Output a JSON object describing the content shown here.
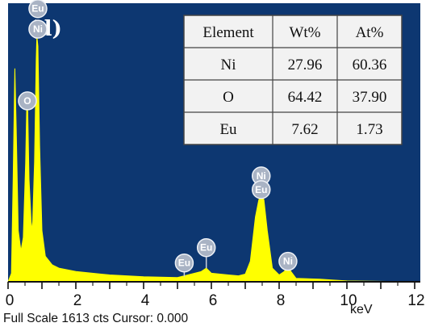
{
  "chart_data": {
    "type": "line",
    "panel_label": "(d)",
    "xlabel": "keV",
    "xlim": [
      0,
      12
    ],
    "x_ticks": [
      "0",
      "2",
      "4",
      "6",
      "8",
      "10",
      "12"
    ],
    "footer": "Full Scale 1613 cts Cursor: 0.000",
    "colors": {
      "plot_bg": "#0d3771",
      "spectrum": "#ffff00",
      "badge": "#a9b3c4",
      "table_bg": "#f2f2f2",
      "table_line": "#444444"
    },
    "spectrum_points": [
      [
        0.0,
        0
      ],
      [
        0.1,
        50
      ],
      [
        0.15,
        600
      ],
      [
        0.2,
        1250
      ],
      [
        0.24,
        900
      ],
      [
        0.3,
        300
      ],
      [
        0.38,
        180
      ],
      [
        0.45,
        260
      ],
      [
        0.52,
        700
      ],
      [
        0.55,
        1020
      ],
      [
        0.58,
        1000
      ],
      [
        0.62,
        600
      ],
      [
        0.68,
        350
      ],
      [
        0.72,
        300
      ],
      [
        0.78,
        700
      ],
      [
        0.83,
        1300
      ],
      [
        0.85,
        1440
      ],
      [
        0.88,
        1380
      ],
      [
        0.93,
        800
      ],
      [
        1.0,
        300
      ],
      [
        1.1,
        150
      ],
      [
        1.3,
        100
      ],
      [
        1.5,
        80
      ],
      [
        2.0,
        60
      ],
      [
        3.0,
        40
      ],
      [
        4.0,
        30
      ],
      [
        5.0,
        25
      ],
      [
        5.7,
        60
      ],
      [
        5.85,
        80
      ],
      [
        6.0,
        50
      ],
      [
        6.5,
        40
      ],
      [
        6.8,
        35
      ],
      [
        7.0,
        45
      ],
      [
        7.15,
        120
      ],
      [
        7.3,
        380
      ],
      [
        7.4,
        480
      ],
      [
        7.48,
        520
      ],
      [
        7.55,
        480
      ],
      [
        7.65,
        300
      ],
      [
        7.8,
        80
      ],
      [
        8.0,
        40
      ],
      [
        8.15,
        60
      ],
      [
        8.26,
        90
      ],
      [
        8.35,
        60
      ],
      [
        8.5,
        20
      ],
      [
        9.2,
        15
      ],
      [
        9.6,
        10
      ],
      [
        10.0,
        5
      ],
      [
        12.0,
        0
      ]
    ],
    "y_max": 1613,
    "peak_labels": [
      {
        "text": "Eu",
        "x": 0.88,
        "y": 1600,
        "pin_y": 1560
      },
      {
        "text": "Ni",
        "x": 0.88,
        "y": 1480,
        "pin_y": 1440
      },
      {
        "text": "O",
        "x": 0.57,
        "y": 1060,
        "pin_y": 1020
      },
      {
        "text": "Ni",
        "x": 7.47,
        "y": 620,
        "pin_y": 560
      },
      {
        "text": "Eu",
        "x": 7.47,
        "y": 540,
        "pin_y": 520
      },
      {
        "text": "Eu",
        "x": 5.85,
        "y": 200,
        "pin_y": 80
      },
      {
        "text": "Eu",
        "x": 5.2,
        "y": 110,
        "pin_y": 30
      },
      {
        "text": "Ni",
        "x": 8.26,
        "y": 120,
        "pin_y": 90
      }
    ],
    "table": {
      "headers": [
        "Element",
        "Wt%",
        "At%"
      ],
      "rows": [
        [
          "Ni",
          "27.96",
          "60.36"
        ],
        [
          "O",
          "64.42",
          "37.90"
        ],
        [
          "Eu",
          "7.62",
          "1.73"
        ]
      ]
    }
  }
}
